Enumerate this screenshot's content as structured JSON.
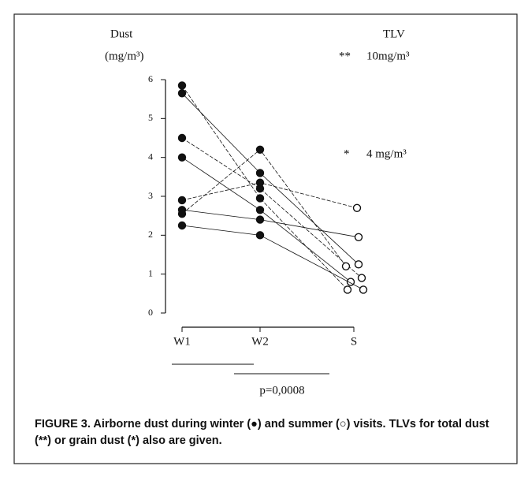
{
  "chart_data": {
    "type": "line",
    "y_label_top": "Dust",
    "y_label_unit": "(mg/m³)",
    "categories": [
      "W1",
      "W2",
      "S"
    ],
    "series": [
      {
        "values": [
          5.85,
          2.95,
          0.6
        ]
      },
      {
        "values": [
          5.65,
          3.6,
          1.25
        ]
      },
      {
        "values": [
          4.5,
          3.2,
          0.9
        ]
      },
      {
        "values": [
          4.0,
          2.65,
          0.8
        ]
      },
      {
        "values": [
          2.9,
          3.35,
          2.7
        ]
      },
      {
        "values": [
          2.65,
          2.4,
          1.95
        ]
      },
      {
        "values": [
          2.55,
          4.2,
          1.2
        ]
      },
      {
        "values": [
          2.25,
          2.0,
          0.6
        ]
      }
    ],
    "color": "#111111",
    "ylim": [
      0,
      6
    ],
    "yticks": [
      0,
      1,
      2,
      3,
      4,
      5,
      6
    ],
    "tlv_title": "TLV",
    "annotations": [
      {
        "symbol": "**",
        "text": "10mg/m³"
      },
      {
        "symbol": "*",
        "text": "4 mg/m³"
      }
    ],
    "p_value": "p=0,0008",
    "caption": "FIGURE 3.  Airborne dust during winter (●) and summer (○) visits. TLVs for total dust (**) or grain dust (*) also are given."
  }
}
